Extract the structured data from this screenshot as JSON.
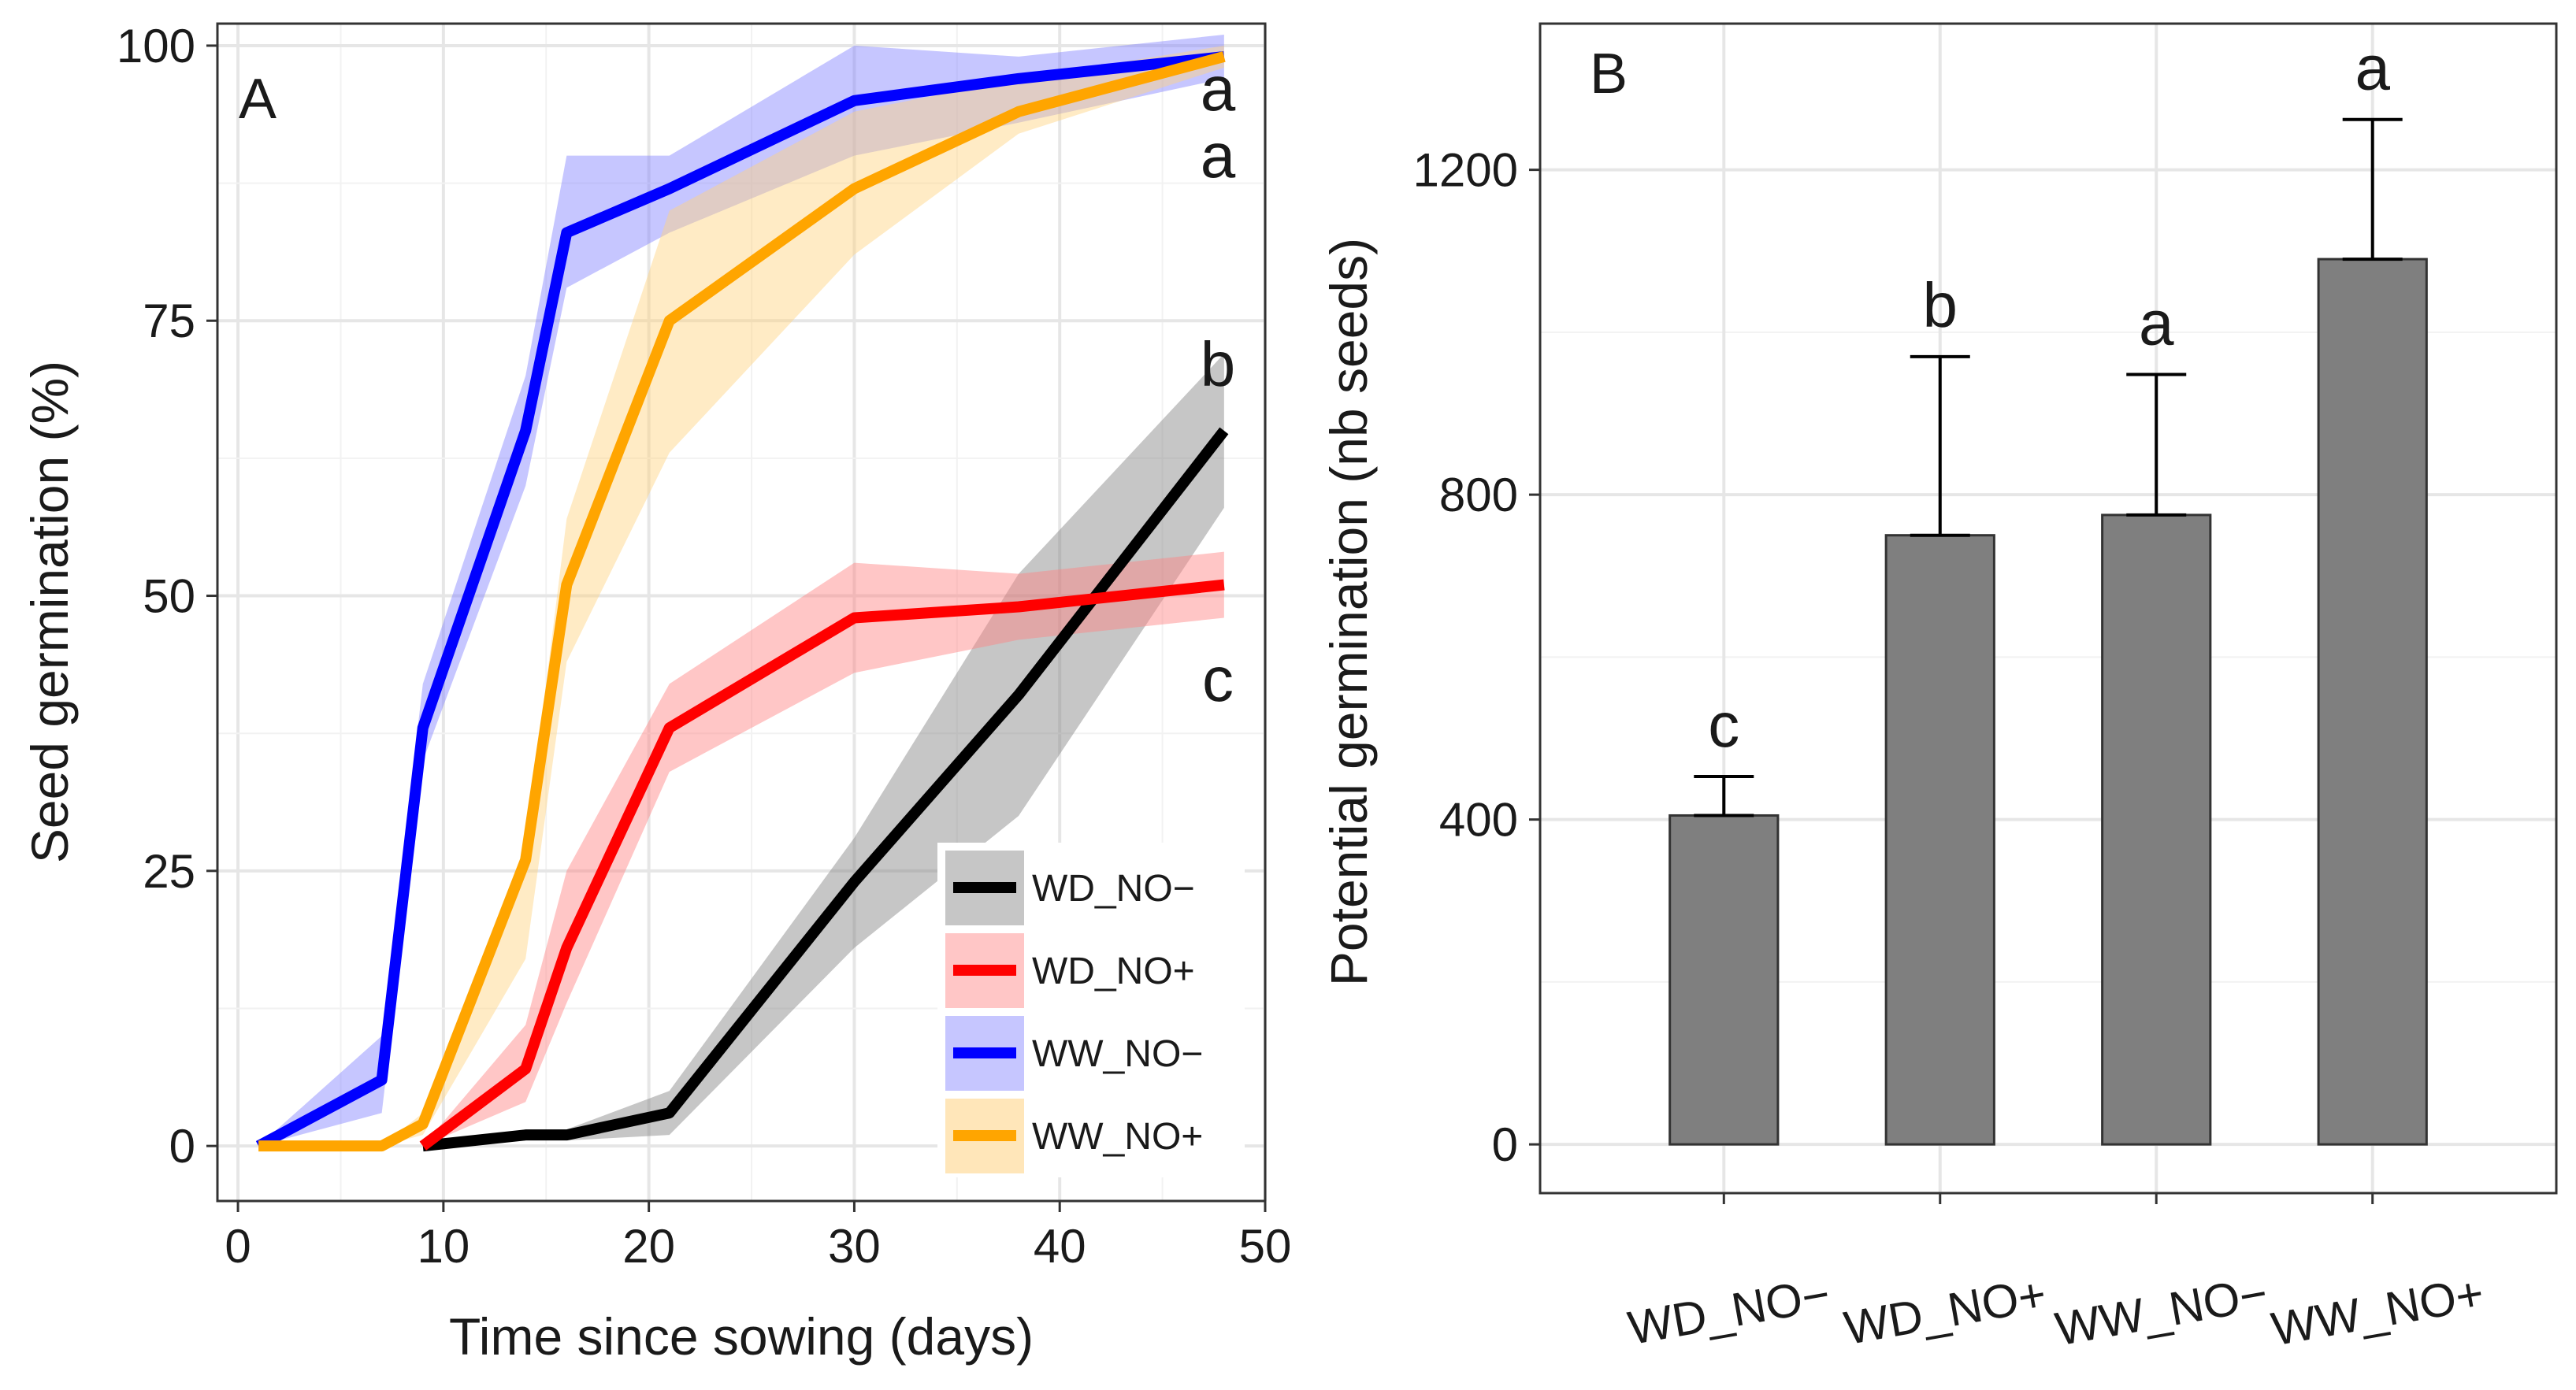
{
  "chart_data": [
    {
      "panel": "A",
      "type": "line",
      "xlabel": "Time since sowing (days)",
      "ylabel": "Seed germination (%)",
      "xlim": [
        -1,
        50
      ],
      "ylim": [
        -5,
        102
      ],
      "xticks": [
        0,
        10,
        20,
        30,
        40,
        50
      ],
      "yticks": [
        0,
        25,
        50,
        75,
        100
      ],
      "grid": true,
      "legend_position": "bottom-right",
      "series": [
        {
          "name": "WD_NO−",
          "color": "#000000",
          "band_color": "#808080",
          "x": [
            9,
            14,
            16,
            21,
            30,
            38,
            48
          ],
          "y": [
            0,
            1,
            1,
            3,
            24,
            41,
            65
          ],
          "lower": [
            0,
            0.5,
            0.5,
            1,
            18,
            30,
            58
          ],
          "upper": [
            0,
            1.5,
            1.5,
            5,
            28,
            52,
            72
          ],
          "letter": "b"
        },
        {
          "name": "WD_NO+",
          "color": "#ff0000",
          "band_color": "#ff8080",
          "x": [
            9,
            14,
            16,
            21,
            30,
            38,
            48
          ],
          "y": [
            0,
            7,
            18,
            38,
            48,
            49,
            51
          ],
          "lower": [
            0,
            4,
            13,
            34,
            43,
            46,
            48
          ],
          "upper": [
            0,
            11,
            25,
            42,
            53,
            52,
            54
          ],
          "letter": "c"
        },
        {
          "name": "WW_NO−",
          "color": "#0000ff",
          "band_color": "#8080ff",
          "x": [
            1,
            7,
            9,
            14,
            16,
            21,
            30,
            38,
            48
          ],
          "y": [
            0,
            6,
            38,
            65,
            83,
            87,
            95,
            97,
            99
          ],
          "lower": [
            0,
            3,
            35,
            60,
            78,
            83,
            90,
            93,
            97
          ],
          "upper": [
            0,
            10,
            42,
            70,
            90,
            90,
            100,
            99,
            101
          ],
          "letter": "a"
        },
        {
          "name": "WW_NO+",
          "color": "#ffa500",
          "band_color": "#ffd27f",
          "x": [
            1,
            7,
            9,
            14,
            16,
            21,
            30,
            38,
            48
          ],
          "y": [
            0,
            0,
            2,
            26,
            51,
            75,
            87,
            94,
            99
          ],
          "lower": [
            0,
            0,
            1,
            17,
            44,
            63,
            81,
            92,
            98
          ],
          "upper": [
            0,
            0,
            3,
            27,
            57,
            85,
            94,
            97,
            100
          ],
          "letter": "a"
        }
      ]
    },
    {
      "panel": "B",
      "type": "bar",
      "xlabel": "",
      "ylabel": "Potential germination (nb seeds)",
      "ylim": [
        -60,
        1380
      ],
      "yticks": [
        0,
        400,
        800,
        1200
      ],
      "grid": true,
      "bar_color": "#7f7f7f",
      "categories": [
        "WD_NO−",
        "WD_NO+",
        "WW_NO−",
        "WW_NO+"
      ],
      "values": [
        405,
        750,
        775,
        1090
      ],
      "error_upper": [
        453,
        970,
        948,
        1262
      ],
      "letters": [
        "c",
        "b",
        "a",
        "a"
      ]
    }
  ]
}
